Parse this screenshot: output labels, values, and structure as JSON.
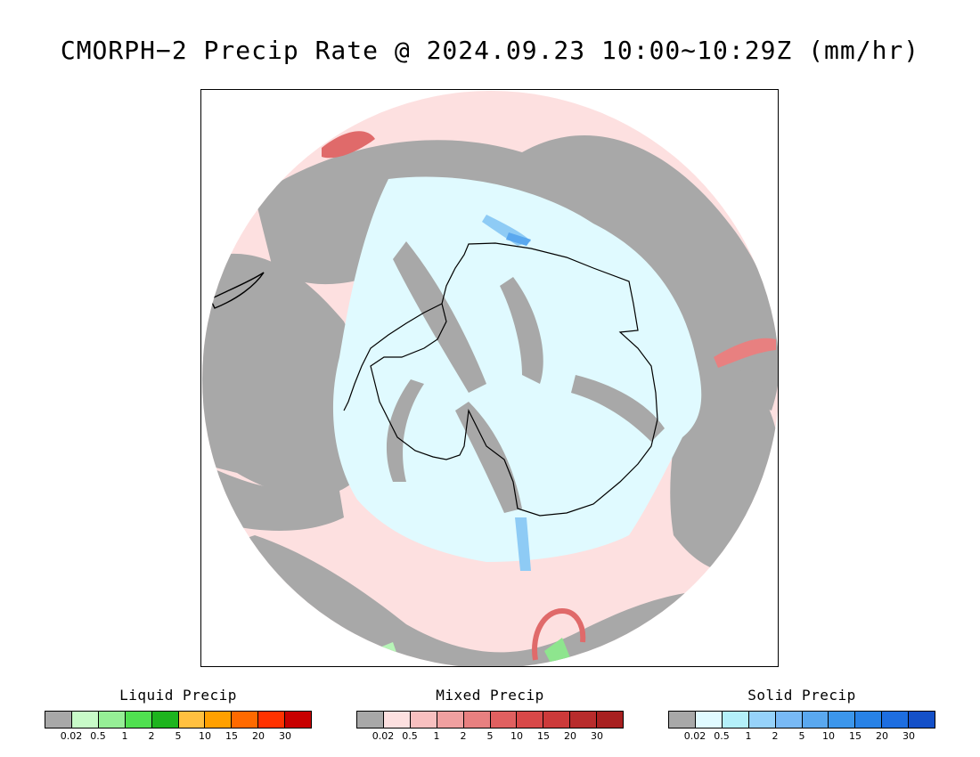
{
  "title": "CMORPH−2 Precip Rate @ 2024.09.23 10:00∼10:29Z (mm/hr)",
  "map": {
    "projection": "south-polar-stereographic",
    "disk_colors": {
      "background": "#fde0e0",
      "gray": "#a8a8a8",
      "snow_light": "#e0faff",
      "snow_blue": "#8ecbf5",
      "snow_mid": "#5aa8ef",
      "mixed_dark": "#e06a6a",
      "liquid_light": "#b7f5b7",
      "liquid_mid": "#8ee58e",
      "coastline": "#000000"
    }
  },
  "legends": [
    {
      "title": "Liquid Precip",
      "colors": [
        "#a8a8a8",
        "#c8fac8",
        "#96ee96",
        "#50e050",
        "#1eb41e",
        "#ffc040",
        "#ffa000",
        "#ff6a00",
        "#ff3200",
        "#c80000"
      ],
      "ticks": [
        "0.02",
        "0.5",
        "1",
        "2",
        "5",
        "10",
        "15",
        "20",
        "30"
      ]
    },
    {
      "title": "Mixed Precip",
      "colors": [
        "#a8a8a8",
        "#fde0e0",
        "#f8c0c0",
        "#f0a0a0",
        "#e88080",
        "#e06060",
        "#d84848",
        "#cc3a3a",
        "#b82c2c",
        "#a82020"
      ],
      "ticks": [
        "0.02",
        "0.5",
        "1",
        "2",
        "5",
        "10",
        "15",
        "20",
        "30"
      ]
    },
    {
      "title": "Solid Precip",
      "colors": [
        "#a8a8a8",
        "#e0faff",
        "#b4f0fa",
        "#96d2fa",
        "#78b9f5",
        "#5aa8ef",
        "#3c96eb",
        "#2882e6",
        "#1e6ee0",
        "#1450c8"
      ],
      "ticks": [
        "0.02",
        "0.5",
        "1",
        "2",
        "5",
        "10",
        "15",
        "20",
        "30"
      ]
    }
  ]
}
